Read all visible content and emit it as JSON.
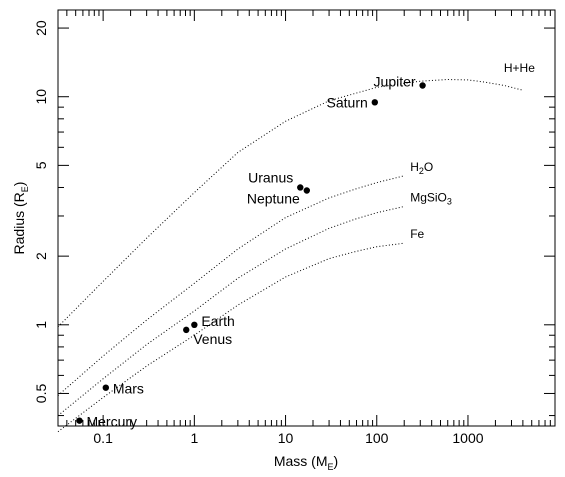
{
  "chart_data": {
    "type": "scatter",
    "title": "",
    "x_scale": "log",
    "y_scale": "log",
    "xlim": [
      0.032,
      9000
    ],
    "ylim": [
      0.36,
      24
    ],
    "grid": false,
    "legend": "none",
    "xlabel": {
      "main": "Mass (M",
      "sub": "E",
      "close": ")"
    },
    "ylabel": {
      "main": "Radius (R",
      "sub": "E",
      "close": ")"
    },
    "x_ticks": [
      {
        "value": 0.1,
        "label": "0.1"
      },
      {
        "value": 1,
        "label": "1"
      },
      {
        "value": 10,
        "label": "10"
      },
      {
        "value": 100,
        "label": "100"
      },
      {
        "value": 1000,
        "label": "1000"
      }
    ],
    "y_ticks": [
      {
        "value": 0.5,
        "label": "0.5"
      },
      {
        "value": 1,
        "label": "1"
      },
      {
        "value": 2,
        "label": "2"
      },
      {
        "value": 5,
        "label": "5"
      },
      {
        "value": 10,
        "label": "10"
      },
      {
        "value": 20,
        "label": "20"
      }
    ],
    "planets": [
      {
        "name": "Mercury",
        "mass": 0.055,
        "radius": 0.38,
        "label_side": "right",
        "label_dy": 1
      },
      {
        "name": "Mars",
        "mass": 0.107,
        "radius": 0.53,
        "label_side": "right",
        "label_dy": 1
      },
      {
        "name": "Venus",
        "mass": 0.815,
        "radius": 0.95,
        "label_side": "below",
        "label_dy": 14
      },
      {
        "name": "Earth",
        "mass": 1.0,
        "radius": 1.0,
        "label_side": "right",
        "label_dy": -4
      },
      {
        "name": "Uranus",
        "mass": 14.5,
        "radius": 4.0,
        "label_side": "left",
        "label_dy": -5
      },
      {
        "name": "Neptune",
        "mass": 17.1,
        "radius": 3.88,
        "label_side": "left",
        "label_dy": 13
      },
      {
        "name": "Saturn",
        "mass": 95.2,
        "radius": 9.45,
        "label_side": "left",
        "label_dy": 5
      },
      {
        "name": "Jupiter",
        "mass": 318,
        "radius": 11.2,
        "label_side": "left",
        "label_dy": 1
      }
    ],
    "series": [
      {
        "name": "H+He",
        "label_sub": "",
        "label_tail": "",
        "x": [
          0.032,
          0.1,
          0.3,
          1,
          3,
          10,
          30,
          100,
          300,
          600,
          1000,
          1500,
          2500,
          3900
        ],
        "y": [
          0.98,
          1.55,
          2.4,
          3.8,
          5.7,
          7.8,
          9.6,
          11.0,
          11.7,
          11.9,
          11.85,
          11.6,
          11.2,
          10.7
        ]
      },
      {
        "name": "H",
        "label_sub": "2",
        "label_tail": "O",
        "x": [
          0.032,
          0.1,
          0.3,
          1,
          3,
          10,
          30,
          60,
          100,
          200
        ],
        "y": [
          0.49,
          0.73,
          1.05,
          1.52,
          2.15,
          2.95,
          3.6,
          3.95,
          4.2,
          4.5
        ]
      },
      {
        "name": "MgSiO",
        "label_sub": "3",
        "label_tail": "",
        "x": [
          0.032,
          0.1,
          0.3,
          1,
          3,
          10,
          30,
          60,
          100,
          200
        ],
        "y": [
          0.4,
          0.58,
          0.82,
          1.15,
          1.6,
          2.15,
          2.65,
          2.92,
          3.1,
          3.3
        ]
      },
      {
        "name": "Fe",
        "label_sub": "",
        "label_tail": "",
        "x": [
          0.032,
          0.1,
          0.3,
          1,
          3,
          10,
          30,
          60,
          100,
          200
        ],
        "y": [
          0.34,
          0.48,
          0.66,
          0.9,
          1.22,
          1.62,
          1.95,
          2.1,
          2.2,
          2.28
        ]
      }
    ]
  }
}
